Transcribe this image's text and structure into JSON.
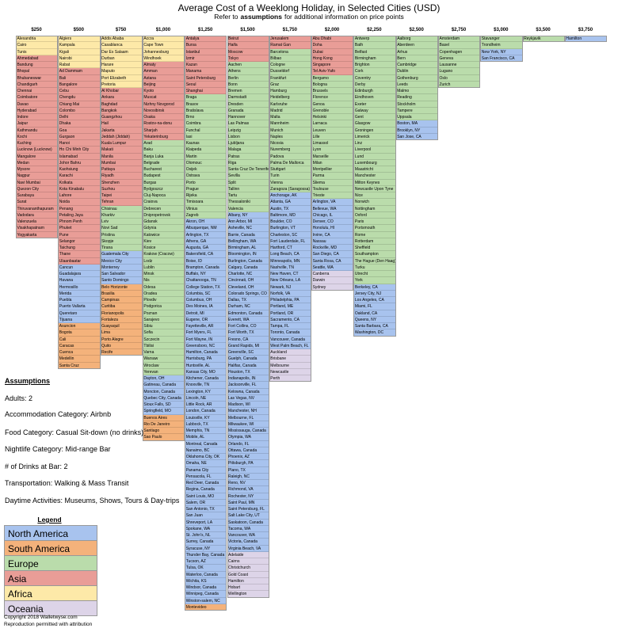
{
  "header": {
    "title": "Average Cost of a Weeklong Holiday, in Selected Cities (USD)",
    "subtitle": [
      "Refer to",
      "assumptions",
      "for additional information on price points"
    ]
  },
  "legend": {
    "title": "Legend",
    "items": [
      {
        "name": "North America",
        "color": "#a8c3ee"
      },
      {
        "name": "South America",
        "color": "#f4b27b"
      },
      {
        "name": "Europe",
        "color": "#badcab"
      },
      {
        "name": "Asia",
        "color": "#e99d97"
      },
      {
        "name": "Africa",
        "color": "#fde9a8"
      },
      {
        "name": "Oceania",
        "color": "#ddd4e8"
      }
    ]
  },
  "columns": [
    {
      "price": "$250",
      "groups": [
        {
          "region": "Africa",
          "cities": [
            "Alexandria",
            "Cairo",
            "Tunis"
          ]
        },
        {
          "region": "Asia",
          "cities": [
            "Ahmedabad",
            "Bandung",
            "Bhopal",
            "Bhubaneswar",
            "Chandigarh",
            "Chennai",
            "Coimbatore",
            "Davao",
            "Hyderabad",
            "Indore",
            "Jaipur",
            "Kathmandu",
            "Kochi",
            "Kuching",
            "Lucknow (Lucknow)",
            "Mangalore",
            "Medan",
            "Mysore",
            "Nagpur",
            "Navi Mumbai",
            "Quezon City",
            "Surabaya",
            "Surat",
            "Thiruvananthapuram",
            "Vadodara",
            "Valenzuela",
            "Visakhapatnam",
            "Yogyakarta"
          ]
        }
      ]
    },
    {
      "price": "$500",
      "groups": [
        {
          "region": "Africa",
          "cities": [
            "Algiers",
            "Kampala",
            "Kigali",
            "Nairobi",
            "Rabat"
          ]
        },
        {
          "region": "Asia",
          "cities": [
            "Ad Dammam",
            "Bali",
            "Bangalore",
            "Cebu",
            "Chengdu",
            "Chiang Mai",
            "Colombo",
            "Delhi",
            "Dhaka",
            "Goa",
            "Gurgaon",
            "Hanoi",
            "Ho Chi Minh City",
            "Islamabad",
            "Johor Bahru",
            "Kaohsiung",
            "Karachi",
            "Kolkata",
            "Kota Kinabalu",
            "Lahore",
            "Noida",
            "Penang",
            "Petaling Jaya",
            "Phnom Penh",
            "Phuket",
            "Pune",
            "Selangor",
            "Taichung",
            "Thane",
            "Ulaanbaatar"
          ]
        },
        {
          "region": "North America",
          "cities": [
            "Cancun",
            "Guadalajara",
            "Havana",
            "Hermosillo",
            "Merida",
            "Puebla",
            "Puerto Vallarta",
            "Queretaro",
            "Tijuana"
          ]
        },
        {
          "region": "South America",
          "cities": [
            "Asuncion",
            "Bogota",
            "Cali",
            "Caracas",
            "Cuenca",
            "Medellin",
            "Santa Cruz"
          ]
        }
      ]
    },
    {
      "price": "$750",
      "groups": [
        {
          "region": "Africa",
          "cities": [
            "Addis Ababa",
            "Casablanca",
            "Dar Es Salaam",
            "Durban",
            "Harare",
            "Maputo",
            "Port Elizabeth",
            "Pretoria"
          ]
        },
        {
          "region": "Asia",
          "cities": [
            "Al Khobar",
            "Ankara",
            "Baghdad",
            "Bangkok",
            "Guangzhou",
            "Hail",
            "Jakarta",
            "Jeddah (Jiddah)",
            "Kuala Lumpur",
            "Makati",
            "Manila",
            "Mumbai",
            "Pattaya",
            "Riyadh",
            "Shenzhen",
            "Suzhou",
            "Taipei",
            "Tehran"
          ]
        },
        {
          "region": "Europe",
          "cities": [
            "Chisinau",
            "Kharkiv",
            "Lviv",
            "Novi Sad",
            "Pristina",
            "Skopje",
            "Tirana"
          ]
        },
        {
          "region": "North America",
          "cities": [
            "Guatemala City",
            "Mexico City",
            "Monterrey",
            "San Salvador",
            "Santo Domingo"
          ]
        },
        {
          "region": "South America",
          "cities": [
            "Belo Horizonte",
            "Brasilia",
            "Campinas",
            "Curitiba",
            "Florianopolis",
            "Fortaleza",
            "Guayaquil",
            "Lima",
            "Porto Alegre",
            "Quito",
            "Recife"
          ]
        }
      ]
    },
    {
      "price": "$1,000",
      "groups": [
        {
          "region": "Africa",
          "cities": [
            "Accra",
            "Cape Town",
            "Johannesburg",
            "Windhoek"
          ]
        },
        {
          "region": "Asia",
          "cities": [
            "Almaty",
            "Amman",
            "Astana",
            "Beijing",
            "Kyoto",
            "Muscat",
            "Nizhny Novgorod",
            "Novosibirsk",
            "Osaka",
            "Rostov-na-donu",
            "Sharjah",
            "Yekaterinburg"
          ]
        },
        {
          "region": "Europe",
          "cities": [
            "Arad",
            "Baku",
            "Banja Luka",
            "Belgrade",
            "Bucharest",
            "Budapest",
            "Burgas",
            "Bydgoszcz",
            "Cluj-Napoca",
            "Craiova",
            "Debrecen",
            "Dnipropetrovsk",
            "Gdansk",
            "Gdynia",
            "Katowice",
            "Kiev",
            "Kosice",
            "Krakow (Cracow)",
            "Lodz",
            "Lublin",
            "Minsk",
            "Nis",
            "Odesa",
            "Oradea",
            "Plovdiv",
            "Podgorica",
            "Poznan",
            "Sarajevo",
            "Sibiu",
            "Sofia",
            "Szczecin",
            "Tbilisi",
            "Varna",
            "Warsaw",
            "Wroclaw",
            "Yerevan"
          ]
        },
        {
          "region": "North America",
          "cities": [
            "Dayton, OH",
            "Gatineau, Canada",
            "Moncton, Canada",
            "Quebec City, Canada",
            "Sioux Falls, SD",
            "Springfield, MO"
          ]
        },
        {
          "region": "South America",
          "cities": [
            "Buenos Aires",
            "Rio De Janeiro",
            "Santiago",
            "Sao Paulo"
          ]
        }
      ]
    },
    {
      "price": "$1,250",
      "groups": [
        {
          "region": "Asia",
          "cities": [
            "Antalya",
            "Bursa",
            "Istanbul",
            "Izmir",
            "Kazan",
            "Manama",
            "Saint Petersburg",
            "Seoul",
            "Shanghai"
          ]
        },
        {
          "region": "Europe",
          "cities": [
            "Braga",
            "Brasov",
            "Bratislava",
            "Brno",
            "Coimbra",
            "Funchal",
            "Iasi",
            "Kaunas",
            "Klaipeda",
            "Martin",
            "Olomouc",
            "Osijek",
            "Ostrava",
            "Porto",
            "Prague",
            "Rijeka",
            "Timisoara",
            "Vilnius",
            "Zagreb"
          ]
        },
        {
          "region": "North America",
          "cities": [
            "Akron, OH",
            "Albuquerque, NM",
            "Arlington, TX",
            "Athens, GA",
            "Augusta, GA",
            "Bakersfield, CA",
            "Boise, ID",
            "Brampton, Canada",
            "Buffalo, NY",
            "Chattanooga, TN",
            "College Station, TX",
            "Columbia, SC",
            "Columbus, OH",
            "Des Moines, IA",
            "Detroit, MI",
            "Eugene, OR",
            "Fayetteville, AR",
            "Fort Myers, FL",
            "Fort Wayne, IN",
            "Greensboro, NC",
            "Hamilton, Canada",
            "Harrisburg, PA",
            "Huntsville, AL",
            "Kansas City, MO",
            "Kitchener, Canada",
            "Knoxville, TN",
            "Lexington, KY",
            "Lincoln, NE",
            "Little Rock, AR",
            "London, Canada",
            "Louisville, KY",
            "Lubbock, TX",
            "Memphis, TN",
            "Mobile, AL",
            "Montreal, Canada",
            "Nanaimo, BC",
            "Oklahoma City, OK",
            "Omaha, NE",
            "Panama City",
            "Pensacola, FL",
            "Red Deer, Canada",
            "Regina, Canada",
            "Saint Louis, MO",
            "Salem, OR",
            "San Antonio, TX",
            "San Juan",
            "Shreveport, LA",
            "Spokane, WA",
            "St. John's, NL",
            "Surrey, Canada",
            "Syracuse, NY",
            "Thunder Bay, Canada",
            "Tucson, AZ",
            "Tulsa, OK",
            "Waterloo, Canada",
            "Wichita, KS",
            "Windsor, Canada",
            "Winnipeg, Canada",
            "Winston-salem, NC"
          ]
        },
        {
          "region": "South America",
          "cities": [
            "Montevideo"
          ]
        }
      ]
    },
    {
      "price": "$1,500",
      "groups": [
        {
          "region": "Asia",
          "cities": [
            "Beirut",
            "Haifa",
            "Moscow",
            "Tokyo"
          ]
        },
        {
          "region": "Europe",
          "cities": [
            "Aachen",
            "Athens",
            "Berlin",
            "Bonn",
            "Bremen",
            "Darmstadt",
            "Dresden",
            "Granada",
            "Hannover",
            "Las Palmas",
            "Leipzig",
            "Lisbon",
            "Ljubljana",
            "Malaga",
            "Patras",
            "Riga",
            "Santa Cruz De Tenerife",
            "Sevilla",
            "Split",
            "Tallinn",
            "Tartu",
            "Thessaloniki",
            "Valencia"
          ]
        },
        {
          "region": "North America",
          "cities": [
            "Albany, NY",
            "Ann Arbor, MI",
            "Asheville, NC",
            "Barrie, Canada",
            "Bellingham, WA",
            "Birmingham, AL",
            "Bloomington, IN",
            "Burlington, Canada",
            "Calgary, Canada",
            "Charlotte, NC",
            "Cincinnati, OH",
            "Cleveland, OH",
            "Colorado Springs, CO",
            "Dallas, TX",
            "Durham, NC",
            "Edmonton, Canada",
            "Everett, WA",
            "Fort Collins, CO",
            "Fort Worth, TX",
            "Fresno, CA",
            "Grand Rapids, MI",
            "Greenville, SC",
            "Guelph, Canada",
            "Halifax, Canada",
            "Houston, TX",
            "Indianapolis, IN",
            "Jacksonville, FL",
            "Kelowna, Canada",
            "Las Vegas, NV",
            "Madison, WI",
            "Manchester, NH",
            "Melbourne, FL",
            "Milwaukee, WI",
            "Mississauga, Canada",
            "Olympia, WA",
            "Orlando, FL",
            "Ottawa, Canada",
            "Phoenix, AZ",
            "Pittsburgh, PA",
            "Plano, TX",
            "Raleigh, NC",
            "Reno, NV",
            "Richmond, VA",
            "Rochester, NY",
            "Saint Paul, MN",
            "Saint Petersburg, FL",
            "Salt Lake City, UT",
            "Saskatoon, Canada",
            "Tacoma, WA",
            "Vancouver, WA",
            "Victoria, Canada",
            "Virginia Beach, VA"
          ]
        },
        {
          "region": "Oceania",
          "cities": [
            "Adelaide",
            "Cairns",
            "Christchurch",
            "Gold Coast",
            "Hamilton",
            "Hobart",
            "Wellington"
          ]
        }
      ]
    },
    {
      "price": "$1,750",
      "groups": [
        {
          "region": "Asia",
          "cities": [
            "Jerusalem",
            "Ramat Gan"
          ]
        },
        {
          "region": "Europe",
          "cities": [
            "Barcelona",
            "Bilbao",
            "Cologne",
            "Dusseldorf",
            "Frankfurt",
            "Graz",
            "Hamburg",
            "Heidelberg",
            "Karlsruhe",
            "Madrid",
            "Malta",
            "Mannheim",
            "Munich",
            "Naples",
            "Nicosia",
            "Nuremberg",
            "Padova",
            "Palma De Mallorca",
            "Stuttgart",
            "Turin",
            "Vienna",
            "Zaragoza (Saragossa)"
          ]
        },
        {
          "region": "North America",
          "cities": [
            "Anchorage, AK",
            "Atlanta, GA",
            "Austin, TX",
            "Baltimore, MD",
            "Boulder, CO",
            "Burlington, VT",
            "Charleston, SC",
            "Fort Lauderdale, FL",
            "Hartford, CT",
            "Long Beach, CA",
            "Minneapolis, MN",
            "Nashville, TN",
            "New Haven, CT",
            "New Orleans, LA",
            "Newark, NJ",
            "Norfolk, VA",
            "Philadelphia, PA",
            "Portland, ME",
            "Portland, OR",
            "Sacramento, CA",
            "Tampa, FL",
            "Toronto, Canada",
            "Vancouver, Canada",
            "West Palm Beach, FL"
          ]
        },
        {
          "region": "Oceania",
          "cities": [
            "Auckland",
            "Brisbane",
            "Melbourne",
            "Newcastle",
            "Perth"
          ]
        }
      ]
    },
    {
      "price": "$2,000",
      "groups": [
        {
          "region": "Asia",
          "cities": [
            "Abu Dhabi",
            "Doha",
            "Dubai",
            "Hong Kong",
            "Singapore",
            "Tel Aviv-Yafo"
          ]
        },
        {
          "region": "Europe",
          "cities": [
            "Bergamo",
            "Bologna",
            "Brussels",
            "Florence",
            "Genoa",
            "Grenoble",
            "Helsinki",
            "Larnaca",
            "Leuven",
            "Lille",
            "Limassol",
            "Lyon",
            "Marseille",
            "Milan",
            "Montpellier",
            "Parma",
            "Sliema",
            "Toulouse",
            "Trieste"
          ]
        },
        {
          "region": "North America",
          "cities": [
            "Arlington, VA",
            "Bellevue, WA",
            "Chicago, IL",
            "Denver, CO",
            "Honolulu, HI",
            "Irvine, CA",
            "Nassau",
            "Rockville, MD",
            "San Diego, CA",
            "Santa Rosa, CA",
            "Seattle, WA"
          ]
        },
        {
          "region": "Oceania",
          "cities": [
            "Canberra",
            "Darwin",
            "Sydney"
          ]
        }
      ]
    },
    {
      "price": "$2,250",
      "groups": [
        {
          "region": "Europe",
          "cities": [
            "Antwerp",
            "Bath",
            "Belfast",
            "Birmingham",
            "Brighton",
            "Cork",
            "Coventry",
            "Derby",
            "Edinburgh",
            "Eindhoven",
            "Exeter",
            "Galway",
            "Gent",
            "Glasgow",
            "Groningen",
            "Limerick",
            "Linz",
            "Liverpool",
            "Lund",
            "Luxembourg",
            "Maastricht",
            "Manchester",
            "Milton Keynes",
            "Newcastle Upon Tyne",
            "Nice",
            "Norwich",
            "Nottingham",
            "Oxford",
            "Paris",
            "Portsmouth",
            "Rome",
            "Rotterdam",
            "Sheffield",
            "Southampton",
            "The Hague (Den Haag)",
            "Turku",
            "Utrecht",
            "York"
          ]
        },
        {
          "region": "North America",
          "cities": [
            "Berkeley, CA",
            "Jersey City, NJ",
            "Los Angeles, CA",
            "Miami, FL",
            "Oakland, CA",
            "Queens, NY",
            "Santa Barbara, CA",
            "Washington, DC"
          ]
        }
      ]
    },
    {
      "price": "$2,500",
      "groups": [
        {
          "region": "Europe",
          "cities": [
            "Aalborg",
            "Aberdeen",
            "Arhus",
            "Bern",
            "Cambridge",
            "Dublin",
            "Gothenburg",
            "Leeds",
            "Malmo",
            "Reading",
            "Stockholm",
            "Tampere",
            "Uppsala"
          ]
        },
        {
          "region": "North America",
          "cities": [
            "Boston, MA",
            "Brooklyn, NY",
            "San Jose, CA"
          ]
        }
      ]
    },
    {
      "price": "$2,750",
      "groups": [
        {
          "region": "Europe",
          "cities": [
            "Amsterdam",
            "Basel",
            "Copenhagen",
            "Geneva",
            "Lausanne",
            "Lugano",
            "Oslo",
            "Zurich"
          ]
        }
      ]
    },
    {
      "price": "$3,000",
      "groups": [
        {
          "region": "Europe",
          "cities": [
            "Stavanger",
            "Trondheim"
          ]
        },
        {
          "region": "North America",
          "cities": [
            "New York, NY",
            "San Francisco, CA"
          ]
        }
      ]
    },
    {
      "price": "$3,500",
      "groups": [
        {
          "region": "Europe",
          "cities": [
            "Reykjavik"
          ]
        }
      ]
    },
    {
      "price": "$3,750",
      "groups": [
        {
          "region": "North America",
          "cities": [
            "Hamilton"
          ]
        }
      ]
    }
  ],
  "assumptions": {
    "title": "Assumptions",
    "items": [
      "Adults: 2",
      "Accommodation Category:  Airbnb",
      "Food Category:  Casual Sit-down (no drinks)",
      "Nightlife Category: Mid-range Bar",
      "# of Drinks at Bar: 2",
      "Transportation: Walking & Mass Transit",
      "Daytime Activities: Museums, Shows, Tours & Day-trips"
    ]
  },
  "footer": [
    "Copyright 2018 Walletwyse.com",
    "Reproduction permitted with attribution"
  ]
}
